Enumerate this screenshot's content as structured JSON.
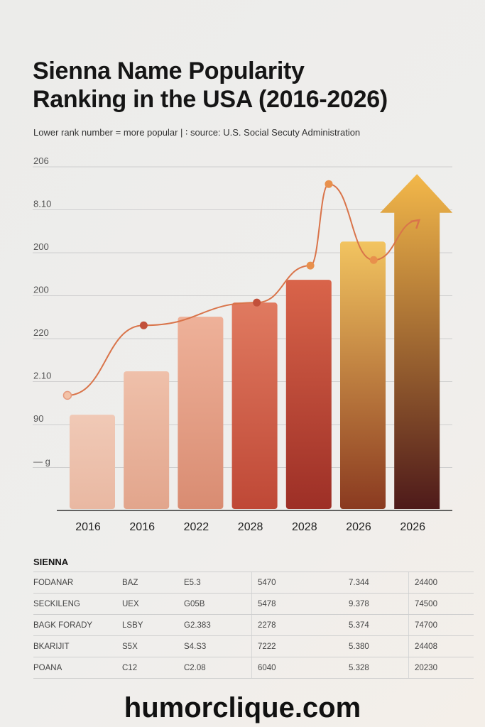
{
  "header": {
    "title_line1": "Sienna Name Popularity",
    "title_line2": "Ranking in the USA (2016-2026)",
    "subtitle": "Lower rank number = more popular | ∶ source: U.S. Social Secuty Administration"
  },
  "chart_data": {
    "type": "bar",
    "title": "Sienna Name Popularity Ranking in the USA (2016-2026)",
    "xlabel": "",
    "ylabel": "",
    "categories": [
      "2016",
      "2016",
      "2022",
      "2028",
      "2028",
      "2026",
      "2026"
    ],
    "y_tick_labels": [
      "— g",
      "90",
      "2.10",
      "220",
      "200",
      "200",
      "8.10",
      "206"
    ],
    "y_tick_levels": [
      1,
      2,
      3,
      4,
      5,
      6,
      7,
      8
    ],
    "ylim": [
      0,
      8.4
    ],
    "grid": true,
    "values": [
      2.23,
      3.24,
      4.51,
      4.84,
      5.37,
      6.26,
      6.93
    ],
    "last_bar_arrow_tip": 7.83,
    "bar_colors": [
      [
        "#f0c9b6",
        "#e9b8a2"
      ],
      [
        "#efc0aa",
        "#e2a58c"
      ],
      [
        "#eeb199",
        "#d98c72"
      ],
      [
        "#e07a60",
        "#bf4836"
      ],
      [
        "#d9644a",
        "#9d2f26"
      ],
      [
        "#f2c460",
        "#8a3a20"
      ],
      [
        "#f3b84a",
        "#4e1a1a"
      ]
    ],
    "trend_line": {
      "x": [
        -0.46,
        0.95,
        3.04,
        4.03,
        4.37,
        5.2,
        6.04
      ],
      "y": [
        2.68,
        4.31,
        4.84,
        5.7,
        7.6,
        5.83,
        6.76
      ],
      "color": "#d9744a"
    }
  },
  "table": {
    "title": "SIENNA",
    "rows": [
      [
        "FODANAR",
        "BAZ",
        "E5.3",
        "5470",
        "7.344",
        "24400"
      ],
      [
        "SECKILENG",
        "UEX",
        "G05B",
        "5478",
        "9.378",
        "74500"
      ],
      [
        "BAGK FORADY",
        "LSBY",
        "G2.383",
        "2278",
        "5.374",
        "74700"
      ],
      [
        "BKARIJIT",
        "S5X",
        "S4.S3",
        "7222",
        "5.380",
        "24408"
      ],
      [
        "POANA",
        "C12",
        "C2.08",
        "6040",
        "5.328",
        "20230"
      ]
    ]
  },
  "footer": {
    "watermark": "humorclique.com"
  }
}
